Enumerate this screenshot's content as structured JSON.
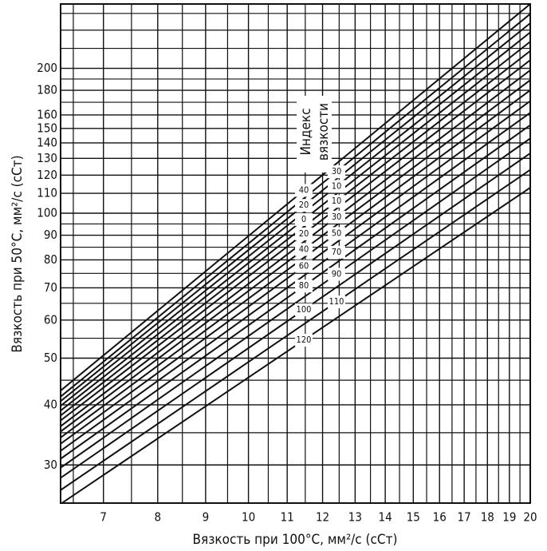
{
  "chart_data": {
    "type": "line",
    "ylabel": "Вязкость при 50°С, мм²/с (сСт)",
    "xlabel": "Вязкость при 100°С, мм²/с (сСт)",
    "annotation": [
      "Индекс",
      "вязкости"
    ],
    "xscale": "log",
    "yscale": "log",
    "grid": true,
    "xlim": [
      6.3,
      20
    ],
    "ylim": [
      25,
      272
    ],
    "xticks": [
      7,
      8,
      9,
      10,
      11,
      12,
      13,
      14,
      15,
      16,
      17,
      18,
      19,
      20
    ],
    "xminor_ticks": [
      6.5,
      7.5,
      8.5,
      9.5,
      10.5,
      11.5,
      12.5,
      13.5,
      14.5,
      15.5,
      16.5,
      17.5,
      18.5,
      19.5
    ],
    "yticks": [
      30,
      40,
      50,
      60,
      70,
      80,
      90,
      100,
      110,
      120,
      130,
      140,
      150,
      160,
      180,
      200
    ],
    "yminor_ticks": [
      35,
      45,
      55,
      65,
      75,
      85,
      95,
      170,
      190,
      220,
      240,
      260
    ],
    "x": [
      6.3,
      20
    ],
    "series": [
      {
        "name": "40",
        "color": "#111111",
        "values": [
          42.8,
          272
        ]
      },
      {
        "name": "30",
        "color": "#111111",
        "values": [
          41.6,
          259.4
        ]
      },
      {
        "name": "20",
        "color": "#111111",
        "values": [
          40.7,
          248.2
        ]
      },
      {
        "name": "10",
        "color": "#111111",
        "values": [
          39.8,
          237.5
        ]
      },
      {
        "name": "0",
        "color": "#111111",
        "values": [
          38.9,
          227.2
        ]
      },
      {
        "name": "10",
        "color": "#111111",
        "values": [
          38.0,
          217.3
        ]
      },
      {
        "name": "20",
        "color": "#111111",
        "values": [
          37.1,
          208.0
        ]
      },
      {
        "name": "30",
        "color": "#111111",
        "values": [
          36.1,
          198.2
        ]
      },
      {
        "name": "40",
        "color": "#111111",
        "values": [
          35.2,
          189.0
        ]
      },
      {
        "name": "50",
        "color": "#111111",
        "values": [
          34.2,
          180.1
        ]
      },
      {
        "name": "60",
        "color": "#111111",
        "values": [
          33.2,
          171.0
        ]
      },
      {
        "name": "70",
        "color": "#111111",
        "values": [
          32.1,
          161.7
        ]
      },
      {
        "name": "80",
        "color": "#111111",
        "values": [
          30.9,
          152.4
        ]
      },
      {
        "name": "90",
        "color": "#111111",
        "values": [
          29.6,
          143.0
        ]
      },
      {
        "name": "100",
        "color": "#111111",
        "values": [
          28.2,
          133.2
        ]
      },
      {
        "name": "110",
        "color": "#111111",
        "values": [
          26.6,
          123.1
        ]
      },
      {
        "name": "120",
        "color": "#111111",
        "values": [
          24.9,
          113.0
        ]
      }
    ]
  }
}
